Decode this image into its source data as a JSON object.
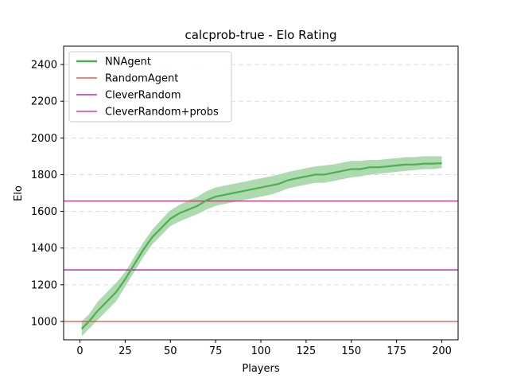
{
  "chart_data": {
    "type": "line",
    "title": "calcprob-true - Elo Rating",
    "xlabel": "Players",
    "ylabel": "Elo",
    "xlim": [
      -9,
      209
    ],
    "ylim": [
      900,
      2500
    ],
    "xticks": [
      "0",
      "25",
      "50",
      "75",
      "100",
      "125",
      "150",
      "175",
      "200"
    ],
    "yticks": [
      "1000",
      "1200",
      "1400",
      "1600",
      "1800",
      "2000",
      "2200",
      "2400"
    ],
    "grid": "horizontal dashed",
    "legend_position": "top-left",
    "series": [
      {
        "name": "NNAgent",
        "kind": "line_with_band",
        "color": "#4caf50",
        "band_color": "#a5d6a7",
        "x": [
          1,
          5,
          10,
          15,
          20,
          25,
          30,
          35,
          40,
          45,
          50,
          55,
          60,
          65,
          70,
          75,
          80,
          85,
          90,
          95,
          100,
          105,
          110,
          115,
          120,
          125,
          130,
          135,
          140,
          145,
          150,
          155,
          160,
          165,
          170,
          175,
          180,
          185,
          190,
          195,
          200
        ],
        "y": [
          960,
          1000,
          1060,
          1110,
          1160,
          1230,
          1310,
          1390,
          1460,
          1510,
          1560,
          1590,
          1610,
          1630,
          1660,
          1680,
          1690,
          1700,
          1710,
          1720,
          1730,
          1740,
          1750,
          1770,
          1780,
          1790,
          1800,
          1800,
          1810,
          1820,
          1830,
          1830,
          1840,
          1840,
          1845,
          1850,
          1855,
          1855,
          1860,
          1860,
          1862
        ],
        "lower": [
          920,
          960,
          1010,
          1060,
          1110,
          1190,
          1270,
          1350,
          1420,
          1470,
          1520,
          1545,
          1565,
          1585,
          1610,
          1630,
          1640,
          1650,
          1660,
          1670,
          1680,
          1690,
          1705,
          1725,
          1735,
          1745,
          1755,
          1755,
          1765,
          1775,
          1785,
          1790,
          1800,
          1805,
          1810,
          1815,
          1820,
          1825,
          1830,
          1830,
          1835
        ],
        "upper": [
          1000,
          1040,
          1110,
          1160,
          1210,
          1270,
          1350,
          1430,
          1500,
          1555,
          1605,
          1635,
          1660,
          1680,
          1710,
          1730,
          1740,
          1750,
          1760,
          1770,
          1780,
          1790,
          1800,
          1815,
          1825,
          1835,
          1845,
          1850,
          1855,
          1865,
          1875,
          1875,
          1880,
          1880,
          1885,
          1890,
          1895,
          1895,
          1900,
          1900,
          1900
        ]
      },
      {
        "name": "RandomAgent",
        "kind": "hline",
        "value": 1000,
        "color": "#e53935"
      },
      {
        "name": "CleverRandom",
        "kind": "hline",
        "value": 1281,
        "color": "#b000b5"
      },
      {
        "name": "CleverRandom+probs",
        "kind": "hline",
        "value": 1656,
        "color": "#e0157a"
      }
    ]
  }
}
